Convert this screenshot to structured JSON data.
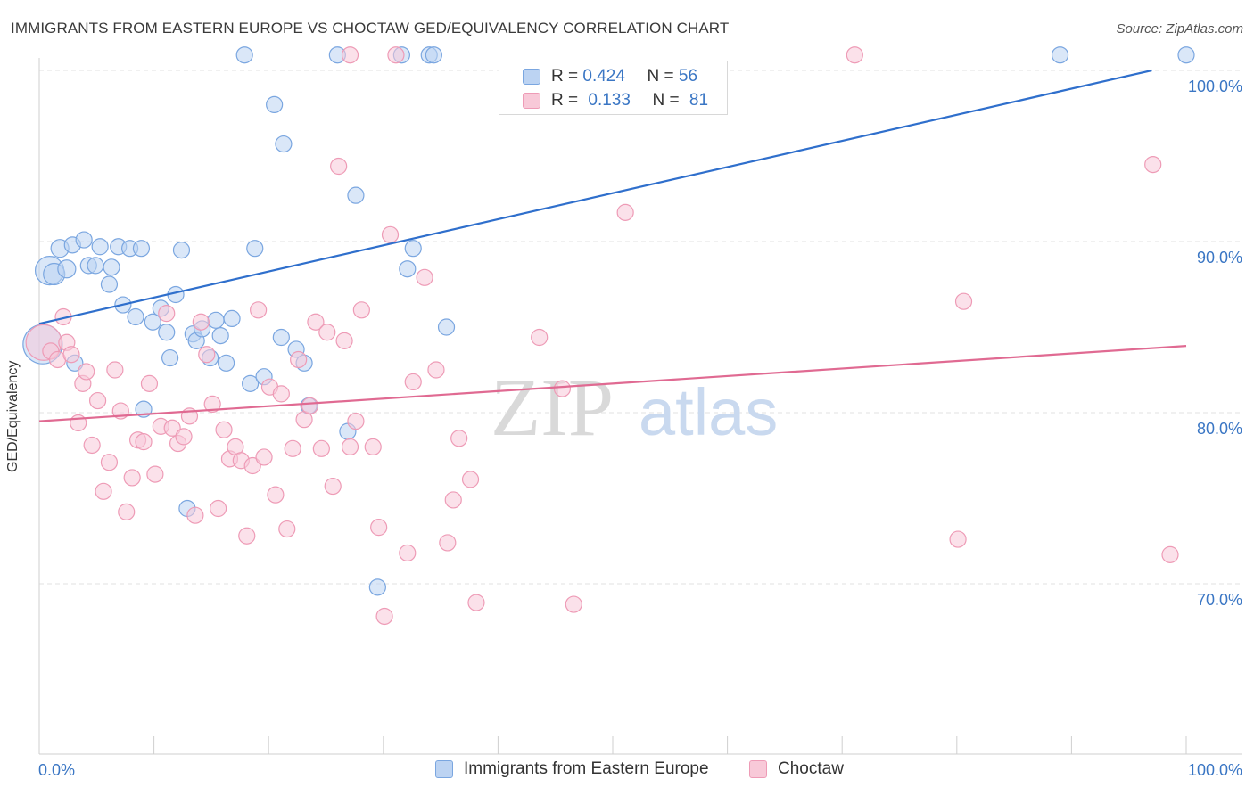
{
  "title": "IMMIGRANTS FROM EASTERN EUROPE VS CHOCTAW GED/EQUIVALENCY CORRELATION CHART",
  "source": "Source: ZipAtlas.com",
  "watermark": {
    "zip": "ZIP",
    "atlas": "atlas"
  },
  "chart_data": {
    "type": "scatter",
    "xlabel": "",
    "ylabel": "GED/Equivalency",
    "xlim": [
      0,
      100
    ],
    "ylim": [
      60,
      101
    ],
    "x_tick_labels": {
      "left": "0.0%",
      "right": "100.0%"
    },
    "y_tick_labels": [
      {
        "value": 100,
        "label": "100.0%"
      },
      {
        "value": 90,
        "label": "90.0%"
      },
      {
        "value": 80,
        "label": "80.0%"
      },
      {
        "value": 70,
        "label": "70.0%"
      }
    ],
    "legend": {
      "placement": "top-center",
      "entries": [
        {
          "r_label": "R =",
          "r_value": "0.424",
          "n_label": "N =",
          "n_value": "56"
        },
        {
          "r_label": "R =",
          "r_value": "0.133",
          "n_label": "N =",
          "n_value": "81"
        }
      ]
    },
    "series": [
      {
        "name": "Immigrants from Eastern Europe",
        "color": "#7aa6e0",
        "fill": "#bcd3f2",
        "line_color": "#2f6fcc",
        "trend": [
          [
            0,
            85.2
          ],
          [
            97,
            100
          ]
        ],
        "points": [
          [
            0.3,
            84.0,
            22
          ],
          [
            0.9,
            88.3,
            16
          ],
          [
            1.3,
            88.1,
            12
          ],
          [
            1.8,
            89.6,
            10
          ],
          [
            2.4,
            88.4,
            10
          ],
          [
            2.9,
            89.8,
            9
          ],
          [
            3.1,
            82.9,
            9
          ],
          [
            3.9,
            90.1,
            9
          ],
          [
            4.3,
            88.6,
            9
          ],
          [
            4.9,
            88.6,
            9
          ],
          [
            5.3,
            89.7,
            9
          ],
          [
            6.3,
            88.5,
            9
          ],
          [
            6.1,
            87.5,
            9
          ],
          [
            6.9,
            89.7,
            9
          ],
          [
            7.3,
            86.3,
            9
          ],
          [
            7.9,
            89.6,
            9
          ],
          [
            8.4,
            85.6,
            9
          ],
          [
            8.9,
            89.6,
            9
          ],
          [
            9.1,
            80.2,
            9
          ],
          [
            9.9,
            85.3,
            9
          ],
          [
            10.6,
            86.1,
            9
          ],
          [
            11.1,
            84.7,
            9
          ],
          [
            11.4,
            83.2,
            9
          ],
          [
            11.9,
            86.9,
            9
          ],
          [
            12.4,
            89.5,
            9
          ],
          [
            12.9,
            74.4,
            9
          ],
          [
            13.4,
            84.6,
            9
          ],
          [
            13.7,
            84.2,
            9
          ],
          [
            14.2,
            84.9,
            9
          ],
          [
            14.9,
            83.2,
            9
          ],
          [
            15.4,
            85.4,
            9
          ],
          [
            15.8,
            84.5,
            9
          ],
          [
            16.3,
            82.9,
            9
          ],
          [
            16.8,
            85.5,
            9
          ],
          [
            17.9,
            100.9,
            9
          ],
          [
            18.4,
            81.7,
            9
          ],
          [
            18.8,
            89.6,
            9
          ],
          [
            19.6,
            82.1,
            9
          ],
          [
            20.5,
            98.0,
            9
          ],
          [
            21.1,
            84.4,
            9
          ],
          [
            21.3,
            95.7,
            9
          ],
          [
            22.4,
            83.7,
            9
          ],
          [
            23.1,
            82.9,
            9
          ],
          [
            23.5,
            80.4,
            9
          ],
          [
            26.0,
            100.9,
            9
          ],
          [
            26.9,
            78.9,
            9
          ],
          [
            27.6,
            92.7,
            9
          ],
          [
            29.5,
            69.8,
            9
          ],
          [
            31.6,
            100.9,
            9
          ],
          [
            32.1,
            88.4,
            9
          ],
          [
            32.6,
            89.6,
            9
          ],
          [
            34.0,
            100.9,
            9
          ],
          [
            34.4,
            100.9,
            9
          ],
          [
            35.5,
            85.0,
            9
          ],
          [
            89.0,
            100.9,
            9
          ],
          [
            100.0,
            100.9,
            9
          ]
        ]
      },
      {
        "name": "Choctaw",
        "color": "#ee9bb6",
        "fill": "#f8c9d8",
        "line_color": "#e06a92",
        "trend": [
          [
            0,
            79.5
          ],
          [
            100,
            83.9
          ]
        ],
        "points": [
          [
            0.4,
            84.1,
            20
          ],
          [
            1.0,
            83.6,
            9
          ],
          [
            1.6,
            83.1,
            9
          ],
          [
            2.1,
            85.6,
            9
          ],
          [
            2.4,
            84.1,
            9
          ],
          [
            2.8,
            83.4,
            9
          ],
          [
            3.4,
            79.4,
            9
          ],
          [
            3.8,
            81.7,
            9
          ],
          [
            4.1,
            82.4,
            9
          ],
          [
            4.6,
            78.1,
            9
          ],
          [
            5.1,
            80.7,
            9
          ],
          [
            5.6,
            75.4,
            9
          ],
          [
            6.1,
            77.1,
            9
          ],
          [
            6.6,
            82.5,
            9
          ],
          [
            7.1,
            80.1,
            9
          ],
          [
            7.6,
            74.2,
            9
          ],
          [
            8.1,
            76.2,
            9
          ],
          [
            8.6,
            78.4,
            9
          ],
          [
            9.1,
            78.3,
            9
          ],
          [
            9.6,
            81.7,
            9
          ],
          [
            10.1,
            76.4,
            9
          ],
          [
            10.6,
            79.2,
            9
          ],
          [
            11.1,
            85.8,
            9
          ],
          [
            11.6,
            79.1,
            9
          ],
          [
            12.1,
            78.2,
            9
          ],
          [
            12.6,
            78.6,
            9
          ],
          [
            13.1,
            79.8,
            9
          ],
          [
            13.6,
            74.0,
            9
          ],
          [
            14.1,
            85.3,
            9
          ],
          [
            14.6,
            83.4,
            9
          ],
          [
            15.1,
            80.5,
            9
          ],
          [
            15.6,
            74.4,
            9
          ],
          [
            16.1,
            79.0,
            9
          ],
          [
            16.6,
            77.3,
            9
          ],
          [
            17.1,
            78.0,
            9
          ],
          [
            17.6,
            77.2,
            9
          ],
          [
            18.1,
            72.8,
            9
          ],
          [
            18.6,
            76.9,
            9
          ],
          [
            19.1,
            86.0,
            9
          ],
          [
            19.6,
            77.4,
            9
          ],
          [
            20.1,
            81.5,
            9
          ],
          [
            20.6,
            75.2,
            9
          ],
          [
            21.1,
            81.1,
            9
          ],
          [
            21.6,
            73.2,
            9
          ],
          [
            22.1,
            77.9,
            9
          ],
          [
            22.6,
            83.1,
            9
          ],
          [
            23.1,
            79.6,
            9
          ],
          [
            23.6,
            80.4,
            9
          ],
          [
            24.1,
            85.3,
            9
          ],
          [
            24.6,
            77.9,
            9
          ],
          [
            25.1,
            84.7,
            9
          ],
          [
            25.6,
            75.7,
            9
          ],
          [
            26.1,
            94.4,
            9
          ],
          [
            26.6,
            84.2,
            9
          ],
          [
            27.1,
            78.0,
            9
          ],
          [
            27.6,
            79.5,
            9
          ],
          [
            28.1,
            86.0,
            9
          ],
          [
            29.1,
            78.0,
            9
          ],
          [
            29.6,
            73.3,
            9
          ],
          [
            30.1,
            68.1,
            9
          ],
          [
            30.6,
            90.4,
            9
          ],
          [
            31.1,
            100.9,
            9
          ],
          [
            32.1,
            71.8,
            9
          ],
          [
            32.6,
            81.8,
            9
          ],
          [
            33.6,
            87.9,
            9
          ],
          [
            34.6,
            82.5,
            9
          ],
          [
            35.6,
            72.4,
            9
          ],
          [
            36.1,
            74.9,
            9
          ],
          [
            36.6,
            78.5,
            9
          ],
          [
            37.6,
            76.1,
            9
          ],
          [
            38.1,
            68.9,
            9
          ],
          [
            27.1,
            100.9,
            9
          ],
          [
            43.6,
            84.4,
            9
          ],
          [
            45.6,
            81.4,
            9
          ],
          [
            46.6,
            68.8,
            9
          ],
          [
            51.1,
            91.7,
            9
          ],
          [
            71.1,
            100.9,
            9
          ],
          [
            80.1,
            72.6,
            9
          ],
          [
            80.6,
            86.5,
            9
          ],
          [
            97.1,
            94.5,
            9
          ],
          [
            98.6,
            71.7,
            9
          ]
        ]
      }
    ]
  }
}
